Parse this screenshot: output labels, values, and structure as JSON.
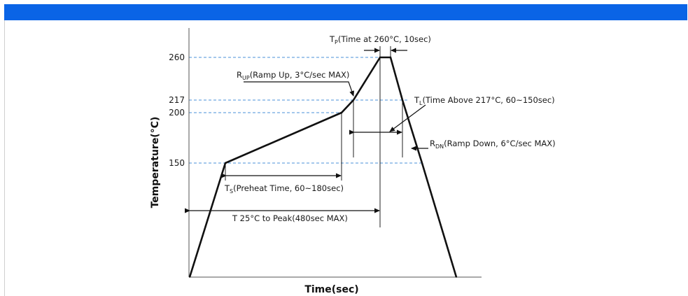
{
  "colors": {
    "header_bar": "#0a64e6",
    "guide": "#4a90d9",
    "profile": "#111111"
  },
  "chart_data": {
    "type": "line",
    "xlabel": "Time(sec)",
    "ylabel": "Temperature(°C)",
    "y_ticks": [
      "260",
      "217",
      "200",
      "150"
    ],
    "grid": "dashed horizontal guides at tick temperatures",
    "profile_points": [
      {
        "x": 0,
        "y": 25
      },
      {
        "x": 90,
        "y": 150
      },
      {
        "x": 270,
        "y": 200
      },
      {
        "x": 300,
        "y": 217
      },
      {
        "x": 340,
        "y": 260
      },
      {
        "x": 350,
        "y": 260
      },
      {
        "x": 375,
        "y": 217
      },
      {
        "x": 380,
        "y": 150
      },
      {
        "x": 450,
        "y": 25
      }
    ],
    "annotations": {
      "tp": {
        "main": "T",
        "sub": "P",
        "rest": "(Time at 260°C, 10sec)"
      },
      "rup": {
        "main": "R",
        "sub": "UP",
        "rest": "(Ramp Up, 3°C/sec MAX)"
      },
      "tl": {
        "main": "T",
        "sub": "L",
        "rest": "(Time Above 217°C, 60~150sec)"
      },
      "rdn": {
        "main": "R",
        "sub": "DN",
        "rest": "(Ramp Down, 6°C/sec MAX)"
      },
      "ts": {
        "main": "T",
        "sub": "S",
        "rest": "(Preheat Time, 60~180sec)"
      },
      "tpeak": "T 25°C to Peak(480sec MAX)"
    }
  }
}
